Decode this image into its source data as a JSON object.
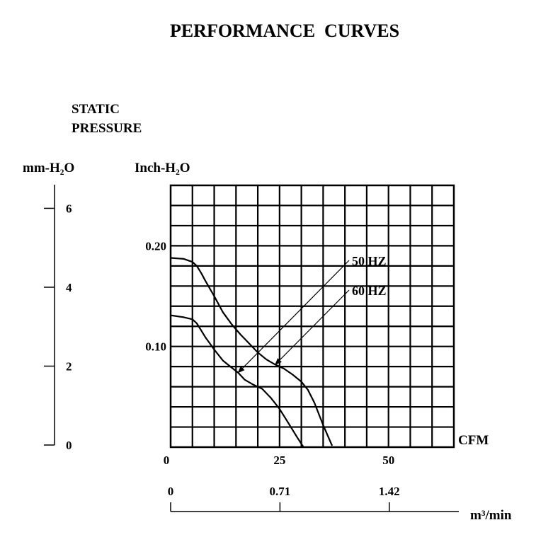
{
  "title": "PERFORMANCE  CURVES",
  "ylabel_line1": "STATIC",
  "ylabel_line2": "PRESSURE",
  "left_unit": "mm-H₂O",
  "right_unit": "Inch-H₂O",
  "xlabel_cfm": "CFM",
  "xlabel_m3": "m³/min",
  "colors": {
    "line": "#000000",
    "background": "#ffffff"
  },
  "chart_data": {
    "type": "line",
    "x_unit": "CFM",
    "y_unit": "Inch-H2O",
    "xlim": [
      0,
      65
    ],
    "ylim": [
      0,
      0.26
    ],
    "grid": true,
    "x_ticks": [
      {
        "value": 0,
        "label": "0"
      },
      {
        "value": 25,
        "label": "25"
      },
      {
        "value": 50,
        "label": "50"
      }
    ],
    "y_ticks": [
      {
        "value": 0.1,
        "label": "0.10"
      },
      {
        "value": 0.2,
        "label": "0.20"
      }
    ],
    "mm_axis": {
      "ylim": [
        0,
        6.6
      ],
      "ticks": [
        {
          "value": 0,
          "label": "0"
        },
        {
          "value": 2,
          "label": "2"
        },
        {
          "value": 4,
          "label": "4"
        },
        {
          "value": 6,
          "label": "6"
        }
      ]
    },
    "m3_axis": {
      "ticks": [
        {
          "value": 0,
          "label": "0"
        },
        {
          "value": 0.71,
          "label": "0.71"
        },
        {
          "value": 1.42,
          "label": "1.42"
        }
      ]
    },
    "series": [
      {
        "name": "50 HZ",
        "x": [
          0,
          3,
          5,
          6,
          7,
          8,
          10,
          12,
          14,
          15.5
        ],
        "y": [
          0.131,
          0.129,
          0.127,
          0.123,
          0.116,
          0.109,
          0.097,
          0.086,
          0.079,
          0.074
        ]
      },
      {
        "name": "50 HZ",
        "x": [
          15.5,
          17,
          19,
          21,
          23,
          25,
          27,
          29,
          30.5
        ],
        "y": [
          0.074,
          0.067,
          0.062,
          0.058,
          0.049,
          0.038,
          0.024,
          0.01,
          0
        ]
      },
      {
        "name": "60 HZ",
        "x": [
          0,
          3,
          5,
          6,
          7,
          8,
          10,
          12,
          14,
          16,
          18,
          20
        ],
        "y": [
          0.188,
          0.187,
          0.184,
          0.18,
          0.173,
          0.165,
          0.15,
          0.134,
          0.122,
          0.112,
          0.103,
          0.094
        ]
      },
      {
        "name": "60 HZ",
        "x": [
          20,
          22,
          24,
          26,
          28,
          30,
          31.5,
          33,
          34,
          35,
          36,
          37
        ],
        "y": [
          0.094,
          0.087,
          0.082,
          0.078,
          0.072,
          0.065,
          0.057,
          0.044,
          0.033,
          0.022,
          0.012,
          0.002
        ]
      }
    ],
    "annotations": [
      {
        "label": "50 HZ",
        "series_name": "50 HZ",
        "target_x": 15.5,
        "target_y": 0.074
      },
      {
        "label": "60 HZ",
        "series_name": "60 HZ",
        "target_x": 24.0,
        "target_y": 0.082
      }
    ]
  }
}
